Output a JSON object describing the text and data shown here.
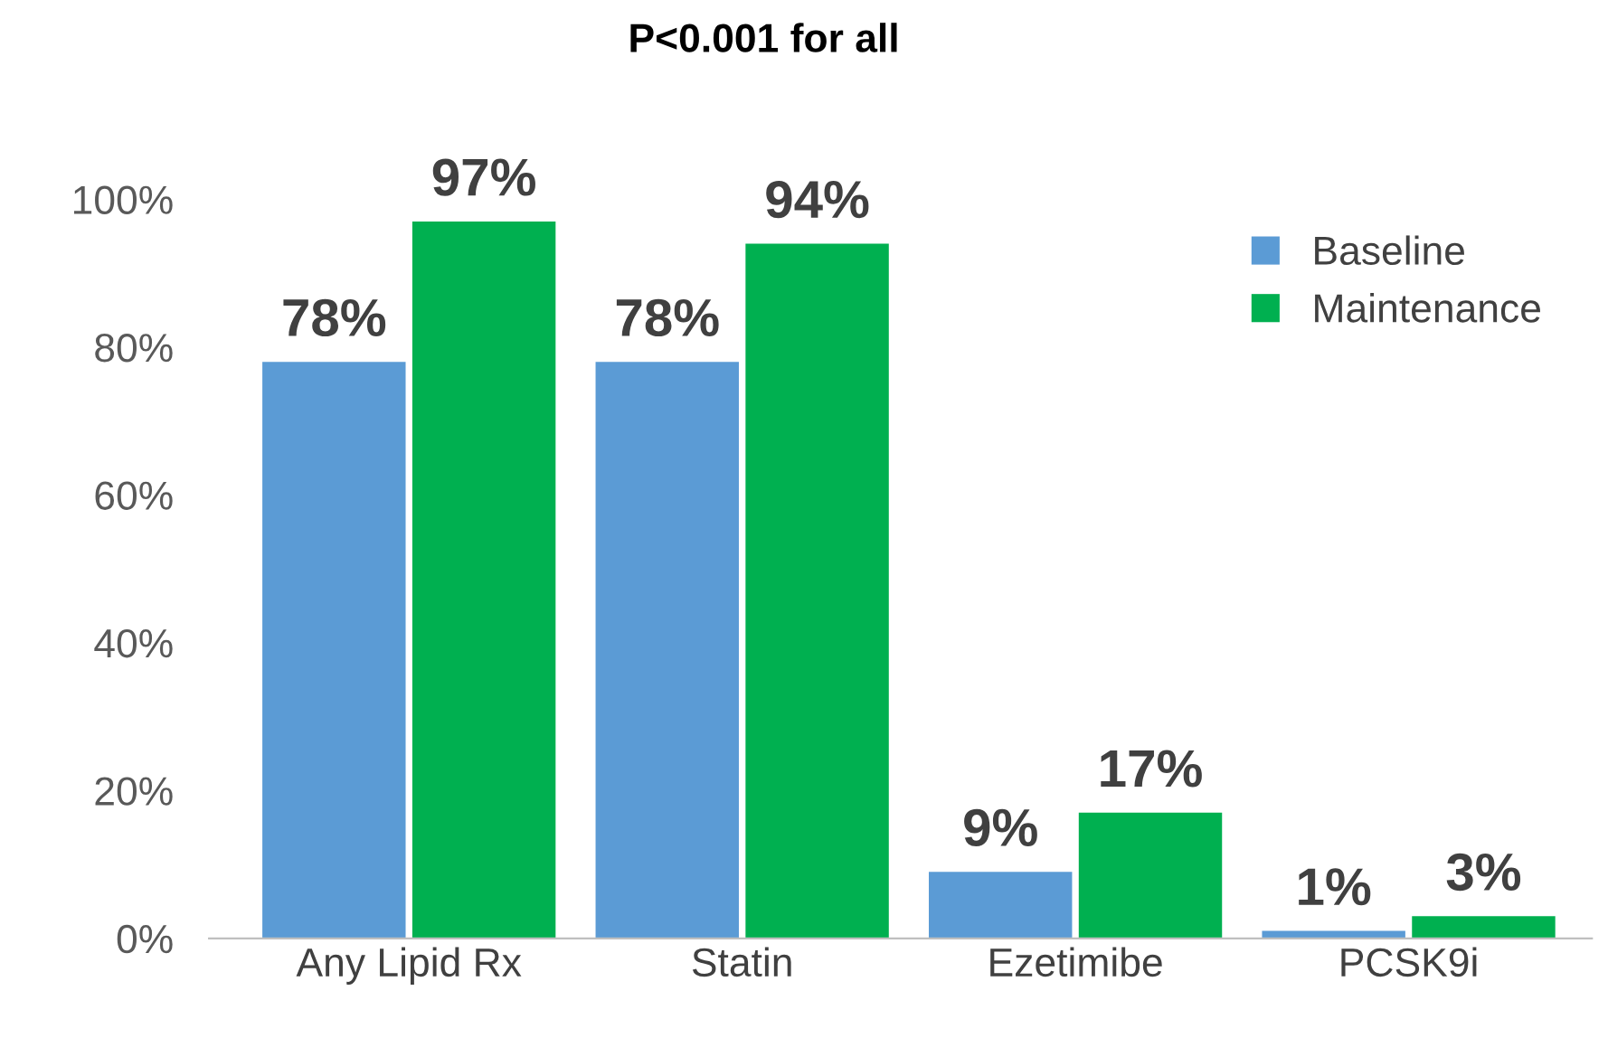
{
  "chart_data": {
    "type": "bar",
    "title": "P<0.001 for all",
    "categories": [
      "Any Lipid Rx",
      "Statin",
      "Ezetimibe",
      "PCSK9i"
    ],
    "series": [
      {
        "name": "Baseline",
        "color": "#5b9bd5",
        "values": [
          78,
          78,
          9,
          1
        ],
        "value_labels": [
          "78%",
          "78%",
          "9%",
          "1%"
        ]
      },
      {
        "name": "Maintenance",
        "color": "#00b050",
        "values": [
          97,
          94,
          17,
          3
        ],
        "value_labels": [
          "97%",
          "94%",
          "17%",
          "3%"
        ]
      }
    ],
    "ylim": [
      0,
      100
    ],
    "yticks": [
      {
        "value": 0,
        "label": "0%"
      },
      {
        "value": 20,
        "label": "20%"
      },
      {
        "value": 40,
        "label": "40%"
      },
      {
        "value": 60,
        "label": "60%"
      },
      {
        "value": 80,
        "label": "80%"
      },
      {
        "value": 100,
        "label": "100%"
      }
    ],
    "grid": false,
    "legend": "top right"
  }
}
